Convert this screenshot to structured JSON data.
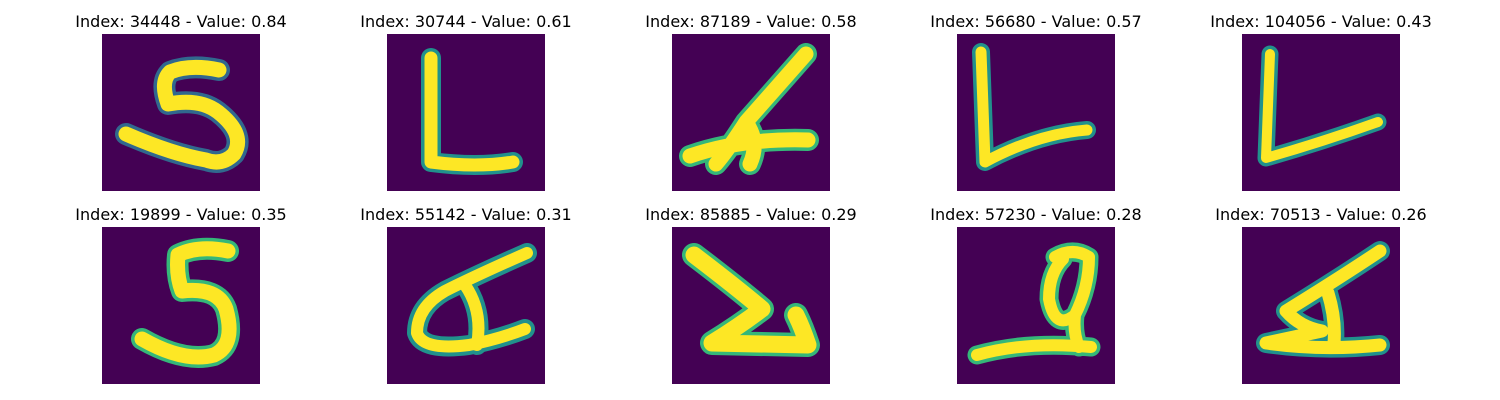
{
  "colors": {
    "background": "#440154",
    "mid_1": "#31688e",
    "mid_2": "#21918c",
    "mid_3": "#35b779",
    "foreground": "#fde725"
  },
  "panels": [
    {
      "title": "Index: 34448 - Value: 0.84",
      "index": 34448,
      "value": 0.84,
      "glyph": "digit-five"
    },
    {
      "title": "Index: 30744 - Value: 0.61",
      "index": 30744,
      "value": 0.61,
      "glyph": "letter-L"
    },
    {
      "title": "Index: 87189 - Value: 0.58",
      "index": 87189,
      "value": 0.58,
      "glyph": "digit-four-tilted"
    },
    {
      "title": "Index: 56680 - Value: 0.57",
      "index": 56680,
      "value": 0.57,
      "glyph": "letter-L-slanted"
    },
    {
      "title": "Index: 104056 - Value: 0.43",
      "index": 104056,
      "value": 0.43,
      "glyph": "letter-L-slanted"
    },
    {
      "title": "Index: 19899 - Value: 0.35",
      "index": 19899,
      "value": 0.35,
      "glyph": "digit-five"
    },
    {
      "title": "Index: 55142 - Value: 0.31",
      "index": 55142,
      "value": 0.31,
      "glyph": "digit-four-tilted"
    },
    {
      "title": "Index: 85885 - Value: 0.29",
      "index": 85885,
      "value": 0.29,
      "glyph": "v-shape"
    },
    {
      "title": "Index: 57230 - Value: 0.28",
      "index": 57230,
      "value": 0.28,
      "glyph": "looped-glyph"
    },
    {
      "title": "Index: 70513 - Value: 0.26",
      "index": 70513,
      "value": 0.26,
      "glyph": "digit-four-tilted"
    }
  ]
}
